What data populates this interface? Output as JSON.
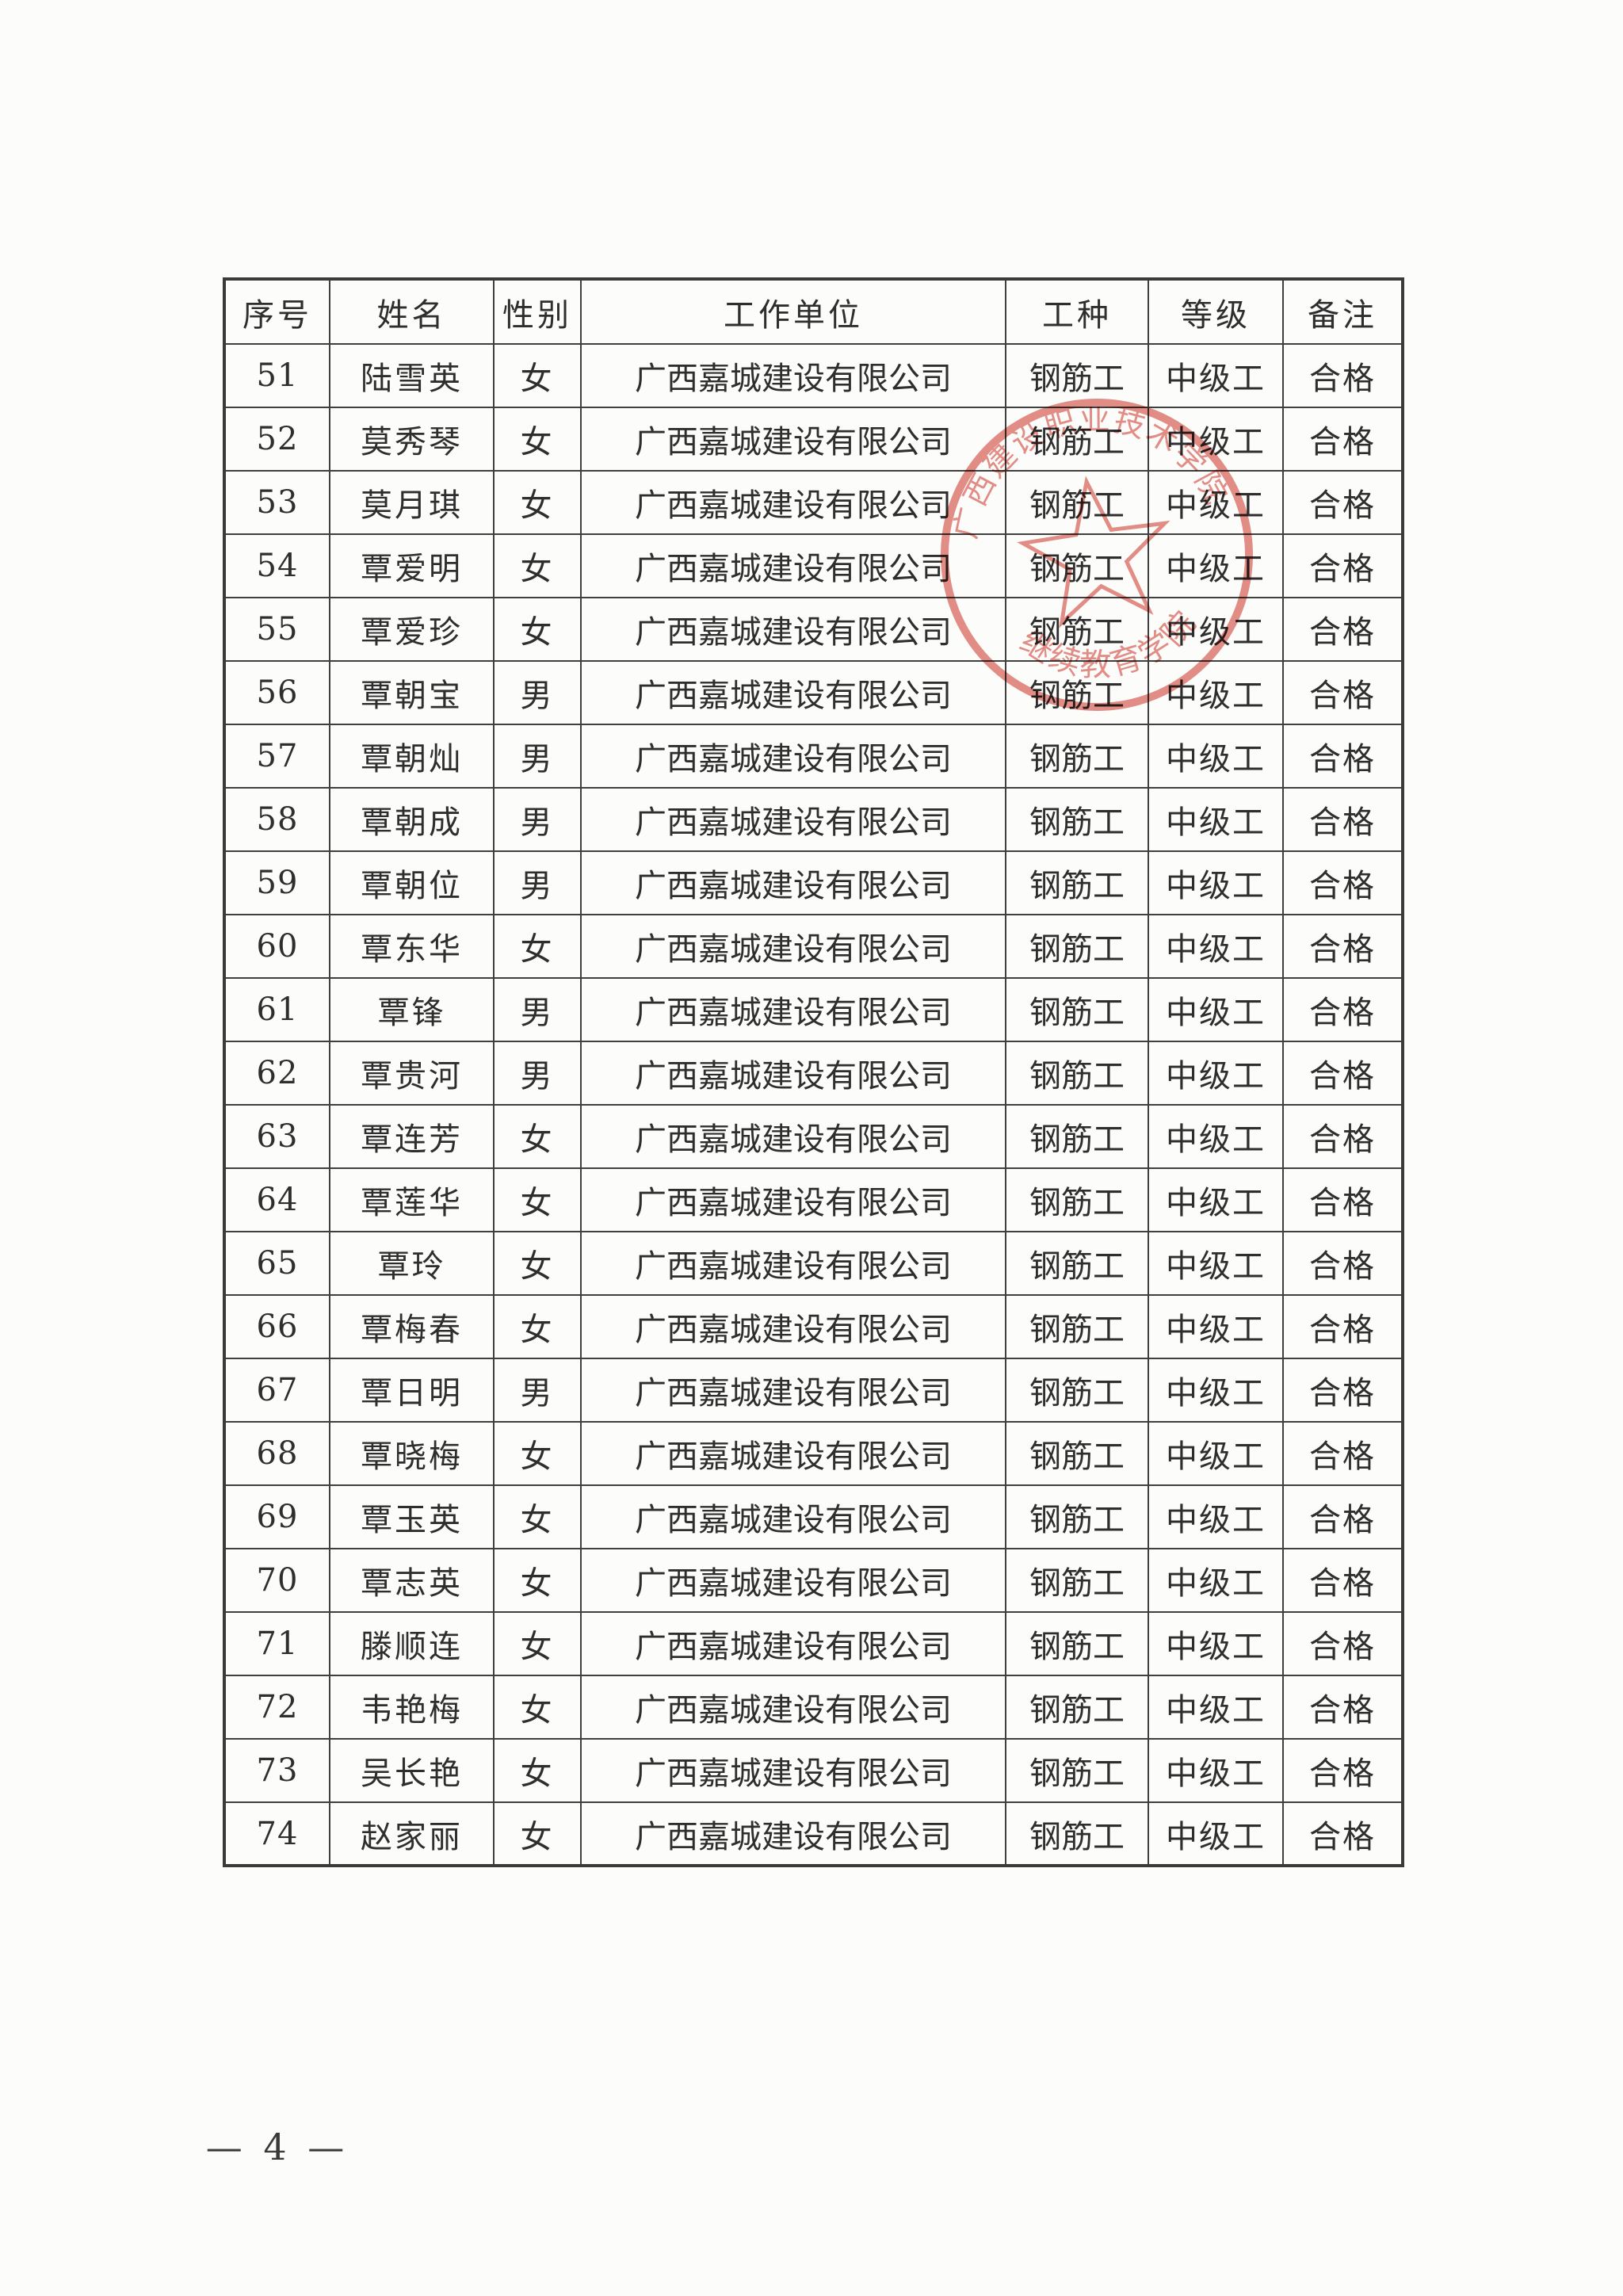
{
  "document": {
    "footer": {
      "page_label": "— 4 —"
    }
  },
  "table": {
    "headers": [
      "序号",
      "姓名",
      "性别",
      "工作单位",
      "工种",
      "等级",
      "备注"
    ],
    "header_keys": [
      "no",
      "name",
      "gender",
      "work-unit",
      "job-type",
      "grade",
      "remark"
    ],
    "rows": [
      [
        "51",
        "陆雪英",
        "女",
        "广西嘉城建设有限公司",
        "钢筋工",
        "中级工",
        "合格"
      ],
      [
        "52",
        "莫秀琴",
        "女",
        "广西嘉城建设有限公司",
        "钢筋工",
        "中级工",
        "合格"
      ],
      [
        "53",
        "莫月琪",
        "女",
        "广西嘉城建设有限公司",
        "钢筋工",
        "中级工",
        "合格"
      ],
      [
        "54",
        "覃爱明",
        "女",
        "广西嘉城建设有限公司",
        "钢筋工",
        "中级工",
        "合格"
      ],
      [
        "55",
        "覃爱珍",
        "女",
        "广西嘉城建设有限公司",
        "钢筋工",
        "中级工",
        "合格"
      ],
      [
        "56",
        "覃朝宝",
        "男",
        "广西嘉城建设有限公司",
        "钢筋工",
        "中级工",
        "合格"
      ],
      [
        "57",
        "覃朝灿",
        "男",
        "广西嘉城建设有限公司",
        "钢筋工",
        "中级工",
        "合格"
      ],
      [
        "58",
        "覃朝成",
        "男",
        "广西嘉城建设有限公司",
        "钢筋工",
        "中级工",
        "合格"
      ],
      [
        "59",
        "覃朝位",
        "男",
        "广西嘉城建设有限公司",
        "钢筋工",
        "中级工",
        "合格"
      ],
      [
        "60",
        "覃东华",
        "女",
        "广西嘉城建设有限公司",
        "钢筋工",
        "中级工",
        "合格"
      ],
      [
        "61",
        "覃锋",
        "男",
        "广西嘉城建设有限公司",
        "钢筋工",
        "中级工",
        "合格"
      ],
      [
        "62",
        "覃贵河",
        "男",
        "广西嘉城建设有限公司",
        "钢筋工",
        "中级工",
        "合格"
      ],
      [
        "63",
        "覃连芳",
        "女",
        "广西嘉城建设有限公司",
        "钢筋工",
        "中级工",
        "合格"
      ],
      [
        "64",
        "覃莲华",
        "女",
        "广西嘉城建设有限公司",
        "钢筋工",
        "中级工",
        "合格"
      ],
      [
        "65",
        "覃玲",
        "女",
        "广西嘉城建设有限公司",
        "钢筋工",
        "中级工",
        "合格"
      ],
      [
        "66",
        "覃梅春",
        "女",
        "广西嘉城建设有限公司",
        "钢筋工",
        "中级工",
        "合格"
      ],
      [
        "67",
        "覃日明",
        "男",
        "广西嘉城建设有限公司",
        "钢筋工",
        "中级工",
        "合格"
      ],
      [
        "68",
        "覃晓梅",
        "女",
        "广西嘉城建设有限公司",
        "钢筋工",
        "中级工",
        "合格"
      ],
      [
        "69",
        "覃玉英",
        "女",
        "广西嘉城建设有限公司",
        "钢筋工",
        "中级工",
        "合格"
      ],
      [
        "70",
        "覃志英",
        "女",
        "广西嘉城建设有限公司",
        "钢筋工",
        "中级工",
        "合格"
      ],
      [
        "71",
        "滕顺连",
        "女",
        "广西嘉城建设有限公司",
        "钢筋工",
        "中级工",
        "合格"
      ],
      [
        "72",
        "韦艳梅",
        "女",
        "广西嘉城建设有限公司",
        "钢筋工",
        "中级工",
        "合格"
      ],
      [
        "73",
        "吴长艳",
        "女",
        "广西嘉城建设有限公司",
        "钢筋工",
        "中级工",
        "合格"
      ],
      [
        "74",
        "赵家丽",
        "女",
        "广西嘉城建设有限公司",
        "钢筋工",
        "中级工",
        "合格"
      ]
    ]
  },
  "stamp": {
    "top_text": "广西建设职业技术学院",
    "bottom_text": "继续教育学院",
    "color": "#d34a3c"
  }
}
